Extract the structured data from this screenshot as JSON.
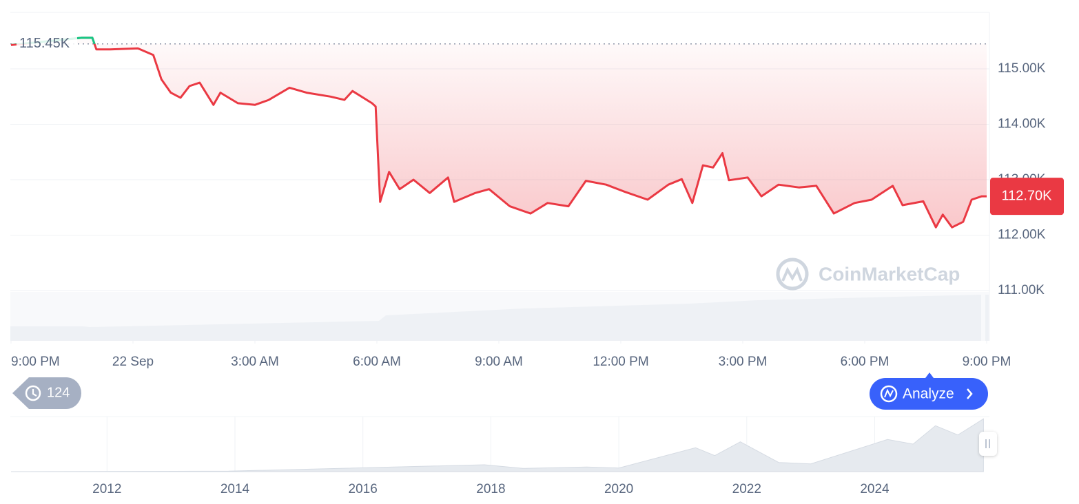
{
  "chart_data": [
    {
      "type": "line",
      "x": [
        0,
        1.73,
        2.0,
        2.1,
        2.44,
        3.12,
        3.5,
        3.7,
        3.93,
        4.17,
        4.39,
        4.64,
        4.98,
        5.15,
        5.58,
        6.0,
        6.34,
        6.85,
        7.27,
        7.86,
        8.2,
        8.4,
        8.88,
        8.97,
        9.08,
        9.3,
        9.56,
        9.9,
        10.3,
        10.75,
        10.9,
        11.42,
        11.76,
        12.27,
        12.78,
        13.2,
        13.71,
        14.14,
        14.64,
        15.07,
        15.66,
        16.17,
        16.5,
        16.76,
        17.02,
        17.27,
        17.5,
        17.66,
        18.12,
        18.46,
        18.88,
        19.39,
        19.81,
        20.24,
        20.75,
        21.17,
        21.69,
        21.93,
        22.44,
        22.75,
        22.92,
        23.15,
        23.42,
        23.63,
        23.88,
        24.0
      ],
      "series": [
        {
          "color": "#ea3943",
          "above_color": "#16c784",
          "values": [
            115.43,
            115.56,
            115.56,
            115.35,
            115.35,
            115.37,
            115.25,
            114.81,
            114.57,
            114.48,
            114.69,
            114.75,
            114.35,
            114.57,
            114.38,
            114.35,
            114.44,
            114.66,
            114.57,
            114.5,
            114.44,
            114.6,
            114.38,
            114.32,
            112.6,
            113.14,
            112.83,
            113.0,
            112.76,
            113.04,
            112.6,
            112.76,
            112.83,
            112.52,
            112.39,
            112.58,
            112.52,
            112.98,
            112.91,
            112.79,
            112.64,
            112.91,
            113.01,
            112.58,
            113.26,
            113.22,
            113.48,
            112.99,
            113.04,
            112.7,
            112.91,
            112.86,
            112.89,
            112.39,
            112.58,
            112.64,
            112.89,
            112.54,
            112.61,
            112.14,
            112.37,
            112.14,
            112.24,
            112.64,
            112.7,
            112.7
          ]
        }
      ],
      "xlim": [
        0,
        24
      ],
      "xticks": [
        {
          "value": 0,
          "label": "9:00 PM"
        },
        {
          "value": 3,
          "label": "22 Sep"
        },
        {
          "value": 6,
          "label": "3:00 AM"
        },
        {
          "value": 9,
          "label": "6:00 AM"
        },
        {
          "value": 12,
          "label": "9:00 AM"
        },
        {
          "value": 15,
          "label": "12:00 PM"
        },
        {
          "value": 18,
          "label": "3:00 PM"
        },
        {
          "value": 21,
          "label": "6:00 PM"
        },
        {
          "value": 24,
          "label": "9:00 PM"
        }
      ],
      "ylim": [
        111,
        116
      ],
      "yticks": [
        {
          "value": 111,
          "label": "111.00K"
        },
        {
          "value": 112,
          "label": "112.00K"
        },
        {
          "value": 113,
          "label": "113.00K"
        },
        {
          "value": 114,
          "label": "114.00K"
        },
        {
          "value": 115,
          "label": "115.00K"
        }
      ],
      "grid": true,
      "reference": {
        "value": 115.45,
        "label": "115.45K"
      },
      "last_price": {
        "value": 112.7,
        "label": "112.70K"
      }
    },
    {
      "type": "area",
      "x": [
        2010.5,
        2013.9,
        2017.9,
        2018.5,
        2019.5,
        2020.0,
        2021.2,
        2021.5,
        2021.9,
        2022.5,
        2023.0,
        2024.2,
        2024.6,
        2024.95,
        2025.3,
        2025.7
      ],
      "values": [
        0,
        1,
        15,
        7,
        10,
        8,
        52,
        35,
        65,
        20,
        17,
        70,
        60,
        100,
        80,
        115
      ],
      "color": "#e6eaef",
      "xlim": [
        2010.5,
        2025.75
      ],
      "xticks": [
        2012,
        2014,
        2016,
        2018,
        2020,
        2022,
        2024
      ],
      "ylim": [
        0,
        120
      ]
    }
  ],
  "ui": {
    "watermark": "CoinMarketCap",
    "history_count": "124",
    "analyze_button": "Analyze"
  }
}
